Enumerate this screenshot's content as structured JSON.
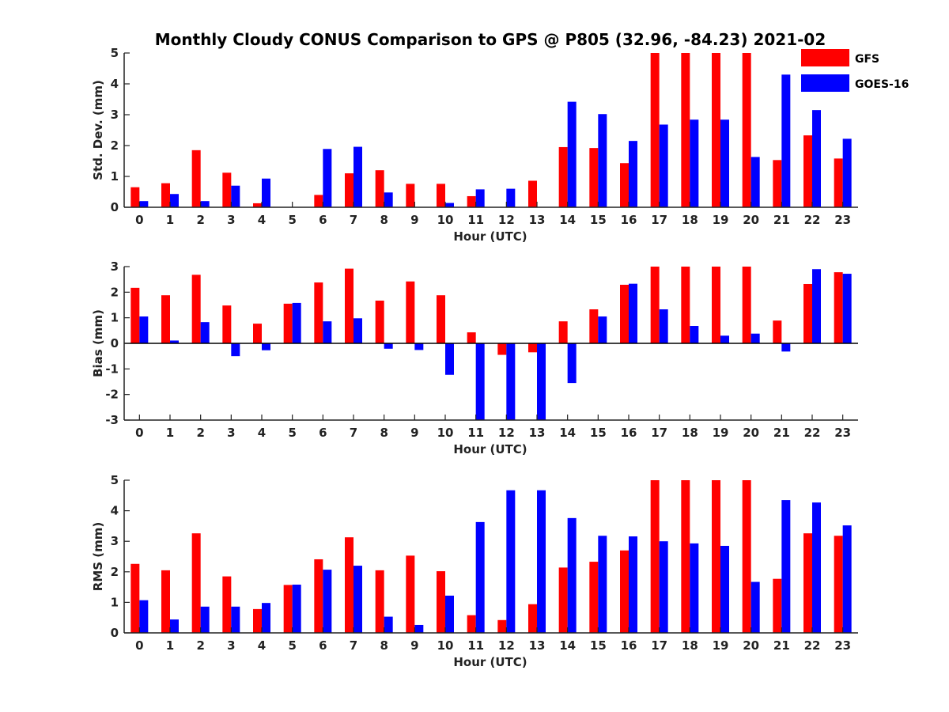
{
  "title": "Monthly Cloudy CONUS Comparison to GPS @ P805 (32.96, -84.23) 2021-02",
  "colors": {
    "GFS": "#ff0000",
    "GOES-16": "#0000ff"
  },
  "legend": {
    "placement": "top-right",
    "entries": [
      "GFS",
      "GOES-16"
    ]
  },
  "chart_data": [
    {
      "type": "bar",
      "xlabel": "Hour (UTC)",
      "ylabel": "Std. Dev. (mm)",
      "ylim": [
        0,
        5
      ],
      "yticks": [
        0,
        1,
        2,
        3,
        4,
        5
      ],
      "categories": [
        "0",
        "1",
        "2",
        "3",
        "4",
        "5",
        "6",
        "7",
        "8",
        "9",
        "10",
        "11",
        "12",
        "13",
        "14",
        "15",
        "16",
        "17",
        "18",
        "19",
        "20",
        "21",
        "22",
        "23"
      ],
      "series": [
        {
          "name": "GFS",
          "values": [
            0.65,
            0.78,
            1.85,
            1.12,
            0.13,
            0,
            0.4,
            1.1,
            1.2,
            0.76,
            0.76,
            0.36,
            0,
            0.86,
            1.95,
            1.92,
            1.43,
            5,
            5,
            5,
            5,
            1.53,
            2.33,
            1.58
          ]
        },
        {
          "name": "GOES-16",
          "values": [
            0.2,
            0.43,
            0.2,
            0.7,
            0.93,
            0,
            1.89,
            1.96,
            0.48,
            0,
            0.14,
            0.58,
            0.6,
            0,
            3.42,
            3.02,
            2.15,
            2.68,
            2.84,
            2.84,
            1.63,
            4.3,
            3.15,
            2.22
          ]
        }
      ]
    },
    {
      "type": "bar",
      "xlabel": "Hour (UTC)",
      "ylabel": "Bias (mm)",
      "ylim": [
        -3,
        3
      ],
      "yticks": [
        -3,
        -2,
        -1,
        0,
        1,
        2,
        3
      ],
      "categories": [
        "0",
        "1",
        "2",
        "3",
        "4",
        "5",
        "6",
        "7",
        "8",
        "9",
        "10",
        "11",
        "12",
        "13",
        "14",
        "15",
        "16",
        "17",
        "18",
        "19",
        "20",
        "21",
        "22",
        "23"
      ],
      "series": [
        {
          "name": "GFS",
          "values": [
            2.17,
            1.88,
            2.68,
            1.48,
            0.77,
            1.55,
            2.38,
            2.92,
            1.67,
            2.42,
            1.88,
            0.43,
            -0.45,
            -0.35,
            0.86,
            1.33,
            2.29,
            3,
            3,
            3,
            3,
            0.89,
            2.32,
            2.78
          ]
        },
        {
          "name": "GOES-16",
          "values": [
            1.05,
            0.11,
            0.83,
            -0.5,
            -0.27,
            1.58,
            0.86,
            0.98,
            -0.21,
            -0.26,
            -1.23,
            -3,
            -3,
            -3,
            -1.55,
            1.05,
            2.33,
            1.33,
            0.68,
            0.3,
            0.38,
            -0.32,
            2.9,
            2.72
          ]
        }
      ]
    },
    {
      "type": "bar",
      "xlabel": "Hour (UTC)",
      "ylabel": "RMS (mm)",
      "ylim": [
        0,
        5
      ],
      "yticks": [
        0,
        1,
        2,
        3,
        4,
        5
      ],
      "categories": [
        "0",
        "1",
        "2",
        "3",
        "4",
        "5",
        "6",
        "7",
        "8",
        "9",
        "10",
        "11",
        "12",
        "13",
        "14",
        "15",
        "16",
        "17",
        "18",
        "19",
        "20",
        "21",
        "22",
        "23"
      ],
      "series": [
        {
          "name": "GFS",
          "values": [
            2.26,
            2.05,
            3.26,
            1.85,
            0.78,
            1.57,
            2.41,
            3.13,
            2.05,
            2.53,
            2.02,
            0.58,
            0.42,
            0.94,
            2.14,
            2.33,
            2.7,
            5,
            5,
            5,
            5,
            1.77,
            3.26,
            3.18
          ]
        },
        {
          "name": "GOES-16",
          "values": [
            1.07,
            0.44,
            0.86,
            0.86,
            0.98,
            1.58,
            2.07,
            2.2,
            0.53,
            0.26,
            1.22,
            3.63,
            4.67,
            4.67,
            3.76,
            3.18,
            3.16,
            3.0,
            2.93,
            2.85,
            1.67,
            4.35,
            4.27,
            3.52
          ]
        }
      ]
    }
  ]
}
